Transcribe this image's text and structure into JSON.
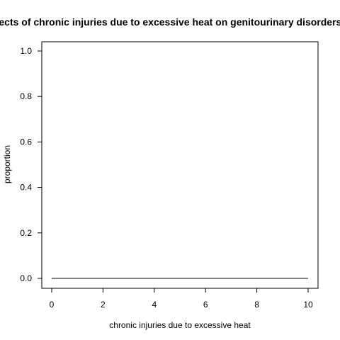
{
  "chart_data": {
    "type": "line",
    "title": "Effects of chronic injuries due to excessive heat on genitourinary disorders",
    "xlabel": "chronic injuries due to excessive heat",
    "ylabel": "proportion",
    "xlim": [
      0,
      10
    ],
    "ylim": [
      0,
      1
    ],
    "x_ticks": [
      0,
      2,
      4,
      6,
      8,
      10
    ],
    "y_ticks": [
      0.0,
      0.2,
      0.4,
      0.6,
      0.8,
      1.0
    ],
    "x_tick_labels": [
      "0",
      "2",
      "4",
      "6",
      "8",
      "10"
    ],
    "y_tick_labels": [
      "0.0",
      "0.2",
      "0.4",
      "0.6",
      "0.8",
      "1.0"
    ],
    "grid": false,
    "series": [
      {
        "name": "proportion",
        "color": "#000000",
        "x": [
          0,
          10
        ],
        "y": [
          0,
          0
        ]
      }
    ]
  }
}
